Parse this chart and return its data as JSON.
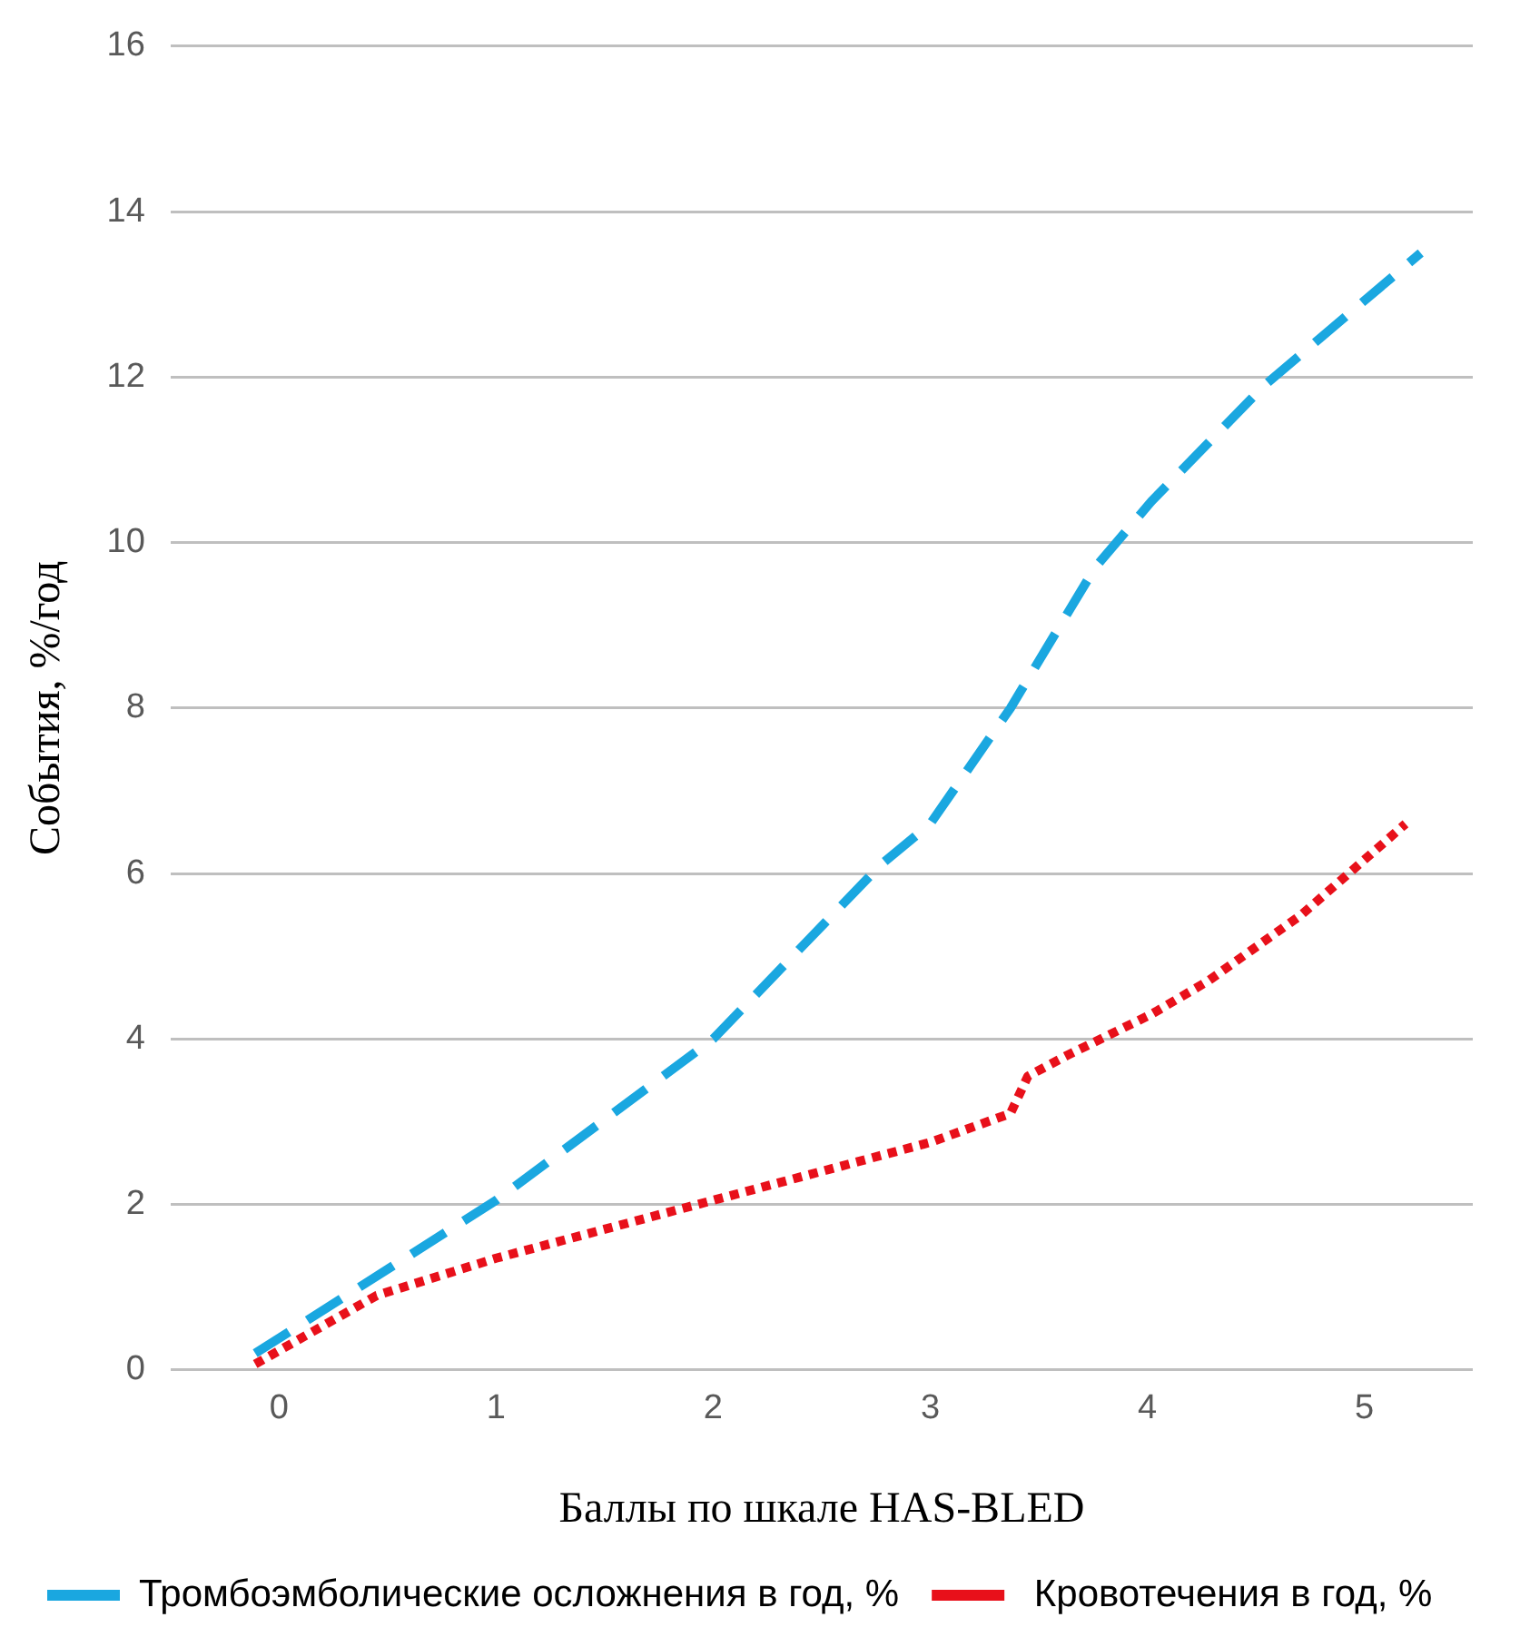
{
  "chart_data": {
    "type": "line",
    "xlabel": "Баллы по шкале HAS-BLED",
    "ylabel": "События, %/год",
    "xlim": [
      -0.5,
      5.5
    ],
    "xticks": [
      0,
      1,
      2,
      3,
      4,
      5
    ],
    "ylim": [
      0,
      16
    ],
    "yticks": [
      0,
      2,
      4,
      6,
      8,
      10,
      12,
      14,
      16
    ],
    "grid": "y",
    "legend": "bottom",
    "marker": "none",
    "series": [
      {
        "name": "Тромбоэмболические осложнения в год, %",
        "color": "#1aa7e0",
        "line_style": "dashed",
        "x": [
          -0.11,
          1,
          2,
          2.77,
          3,
          3.37,
          3.76,
          4.02,
          4.54,
          5.26
        ],
        "values": [
          0.2,
          2.05,
          4.0,
          6.1,
          6.6,
          8.0,
          9.7,
          10.5,
          11.9,
          13.5
        ]
      },
      {
        "name": " Кровотечения в год, %",
        "color": "#e8101a",
        "line_style": "dotted",
        "x": [
          -0.11,
          0.45,
          1,
          2,
          3,
          3.37,
          3.45,
          3.63,
          4.02,
          4.28,
          4.71,
          5.19
        ],
        "values": [
          0.07,
          0.9,
          1.35,
          2.05,
          2.75,
          3.1,
          3.55,
          3.8,
          4.3,
          4.7,
          5.5,
          6.6
        ]
      }
    ]
  }
}
